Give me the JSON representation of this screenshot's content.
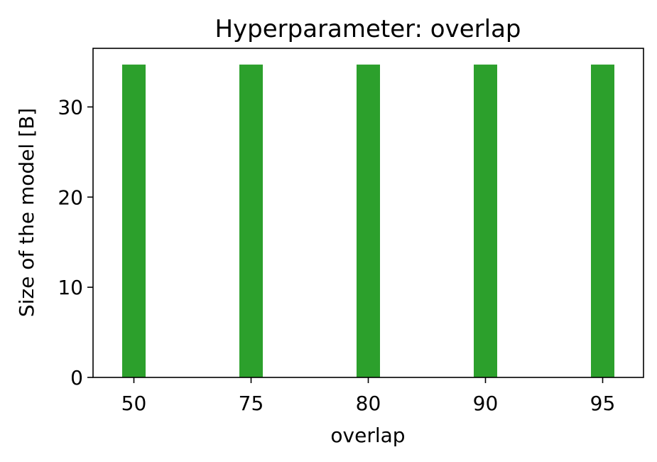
{
  "chart_data": {
    "type": "bar",
    "title": "Hyperparameter: overlap",
    "xlabel": "overlap",
    "ylabel": "Size of the model [B]",
    "categories": [
      "50",
      "75",
      "80",
      "90",
      "95"
    ],
    "values": [
      34.7,
      34.7,
      34.7,
      34.7,
      34.7
    ],
    "ylim": [
      0,
      36.5
    ],
    "yticks": [
      0,
      10,
      20,
      30
    ],
    "bar_color": "#2ca02c",
    "grid": false,
    "legend": "none"
  }
}
